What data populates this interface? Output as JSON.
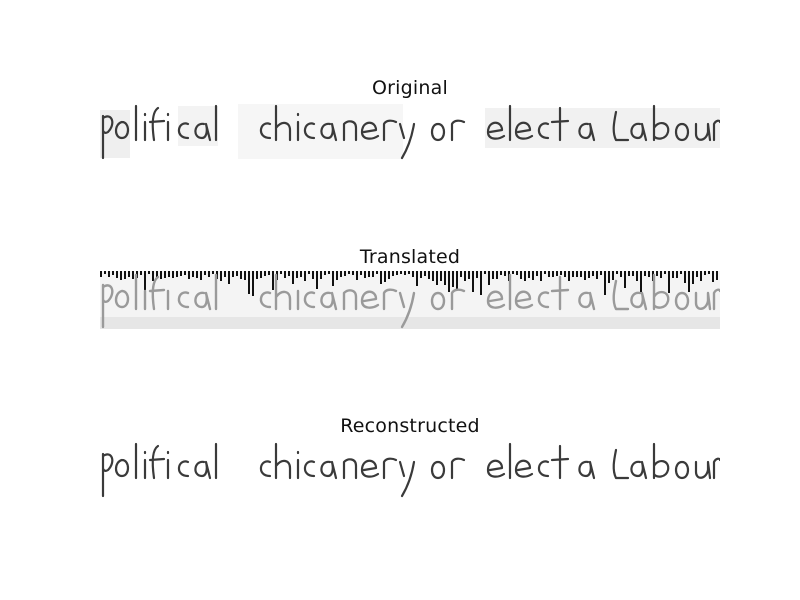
{
  "panels": [
    {
      "title": "Original",
      "variant": "original"
    },
    {
      "title": "Translated",
      "variant": "translated"
    },
    {
      "title": "Reconstructed",
      "variant": "reconstructed"
    }
  ],
  "handwriting_text": "political chicanery or elect a Labour",
  "colors": {
    "ink": "#3a3a3a",
    "ink_faded": "#9a9a9a",
    "noise_bars": "#111111",
    "paper_patch": "#eeeeee"
  }
}
